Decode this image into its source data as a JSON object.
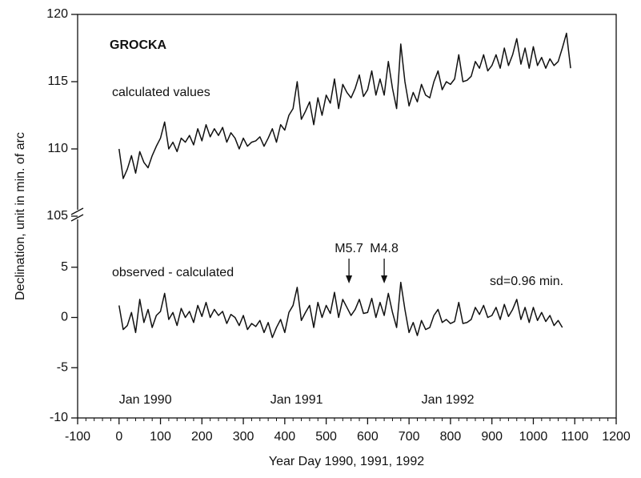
{
  "chart_data": [
    {
      "type": "line",
      "x_label": "Year Day 1990, 1991, 1992",
      "y_label": "Declination, unit in min. of arc",
      "xlim": [
        -100,
        1200
      ],
      "xticks": [
        -100,
        0,
        100,
        200,
        300,
        400,
        500,
        600,
        700,
        800,
        900,
        1000,
        1100,
        1200
      ],
      "ylim": [
        -10,
        10
      ],
      "yticks": [
        -10,
        -5,
        0,
        5
      ],
      "x": [
        0,
        10,
        20,
        30,
        40,
        50,
        60,
        70,
        80,
        90,
        100,
        110,
        120,
        130,
        140,
        150,
        160,
        170,
        180,
        190,
        200,
        210,
        220,
        230,
        240,
        250,
        260,
        270,
        280,
        290,
        300,
        310,
        320,
        330,
        340,
        350,
        360,
        370,
        380,
        390,
        400,
        410,
        420,
        430,
        440,
        450,
        460,
        470,
        480,
        490,
        500,
        510,
        520,
        530,
        540,
        550,
        560,
        570,
        580,
        590,
        600,
        610,
        620,
        630,
        640,
        650,
        660,
        670,
        680,
        690,
        700,
        710,
        720,
        730,
        740,
        750,
        760,
        770,
        780,
        790,
        800,
        810,
        820,
        830,
        840,
        850,
        860,
        870,
        880,
        890,
        900,
        910,
        920,
        930,
        940,
        950,
        960,
        970,
        980,
        990,
        1000,
        1010,
        1020,
        1030,
        1040,
        1050,
        1060,
        1070
      ],
      "series": [
        {
          "name": "observed - calculated",
          "color": "#111111",
          "values": [
            1.2,
            -1.2,
            -0.8,
            0.5,
            -1.5,
            1.8,
            -0.5,
            0.8,
            -1,
            0.2,
            0.6,
            2.4,
            -0.2,
            0.5,
            -0.8,
            0.9,
            0,
            0.6,
            -0.5,
            1.2,
            0.1,
            1.5,
            0,
            0.8,
            0.2,
            0.6,
            -0.6,
            0.3,
            0,
            -0.8,
            0.2,
            -1.2,
            -0.6,
            -0.9,
            -0.3,
            -1.5,
            -0.5,
            -2,
            -1,
            -0.2,
            -1.5,
            0.5,
            1.2,
            3,
            -0.3,
            0.5,
            1.2,
            -1,
            1.5,
            0,
            1.2,
            0.4,
            2.5,
            0,
            1.8,
            1,
            0.2,
            0.8,
            1.8,
            0.4,
            0.5,
            1.9,
            0,
            1.5,
            0.2,
            2.4,
            0.5,
            -1,
            3.5,
            0.8,
            -1.5,
            -0.5,
            -1.8,
            -0.3,
            -1.2,
            -1,
            0.2,
            0.8,
            -0.5,
            -0.2,
            -0.6,
            -0.4,
            1.5,
            -0.6,
            -0.5,
            -0.2,
            1,
            0.3,
            1.2,
            0,
            0.2,
            1,
            -0.2,
            1.3,
            0.1,
            0.8,
            1.8,
            -0.2,
            1,
            -0.5,
            1,
            -0.3,
            0.5,
            -0.4,
            0.2,
            -0.8,
            -0.3,
            -1
          ]
        }
      ],
      "annotations": [
        {
          "text": "Jan 1990",
          "x": 0
        },
        {
          "text": "Jan 1991",
          "x": 365
        },
        {
          "text": "Jan 1992",
          "x": 730
        },
        {
          "text": "M5.7",
          "x": 555
        },
        {
          "text": "M4.8",
          "x": 640
        },
        {
          "text": "sd=0.96 min."
        }
      ]
    },
    {
      "type": "line",
      "title": "GROCKA",
      "ylim": [
        105,
        120
      ],
      "yticks": [
        105,
        110,
        115,
        120
      ],
      "x": [
        0,
        10,
        20,
        30,
        40,
        50,
        60,
        70,
        80,
        90,
        100,
        110,
        120,
        130,
        140,
        150,
        160,
        170,
        180,
        190,
        200,
        210,
        220,
        230,
        240,
        250,
        260,
        270,
        280,
        290,
        300,
        310,
        320,
        330,
        340,
        350,
        360,
        370,
        380,
        390,
        400,
        410,
        420,
        430,
        440,
        450,
        460,
        470,
        480,
        490,
        500,
        510,
        520,
        530,
        540,
        550,
        560,
        570,
        580,
        590,
        600,
        610,
        620,
        630,
        640,
        650,
        660,
        670,
        680,
        690,
        700,
        710,
        720,
        730,
        740,
        750,
        760,
        770,
        780,
        790,
        800,
        810,
        820,
        830,
        840,
        850,
        860,
        870,
        880,
        890,
        900,
        910,
        920,
        930,
        940,
        950,
        960,
        970,
        980,
        990,
        1000,
        1010,
        1020,
        1030,
        1040,
        1050,
        1060,
        1070,
        1080,
        1090
      ],
      "series": [
        {
          "name": "calculated values",
          "color": "#111111",
          "values": [
            110,
            107.8,
            108.5,
            109.5,
            108.2,
            109.8,
            109,
            108.6,
            109.5,
            110.2,
            110.8,
            112,
            110,
            110.5,
            109.8,
            110.8,
            110.5,
            111,
            110.3,
            111.5,
            110.6,
            111.8,
            110.9,
            111.5,
            111,
            111.6,
            110.5,
            111.2,
            110.8,
            110,
            110.8,
            110.2,
            110.5,
            110.6,
            110.9,
            110.2,
            110.8,
            111.5,
            110.5,
            111.8,
            111.4,
            112.5,
            113,
            115,
            112.2,
            112.8,
            113.5,
            111.8,
            113.8,
            112.5,
            114,
            113.4,
            115.2,
            113,
            114.8,
            114.2,
            113.8,
            114.5,
            115.5,
            113.9,
            114.4,
            115.8,
            114,
            115.2,
            114,
            116.5,
            114.5,
            113,
            117.8,
            115,
            113.2,
            114.2,
            113.5,
            114.8,
            114,
            113.8,
            115,
            115.8,
            114.4,
            115,
            114.8,
            115.2,
            117,
            115,
            115.1,
            115.4,
            116.5,
            116,
            117,
            115.8,
            116.2,
            117,
            116,
            117.5,
            116.2,
            117,
            118.2,
            116.3,
            117.5,
            116,
            117.6,
            116.2,
            116.8,
            116,
            116.7,
            116.2,
            116.5,
            117.5,
            118.6,
            116
          ]
        }
      ]
    }
  ]
}
